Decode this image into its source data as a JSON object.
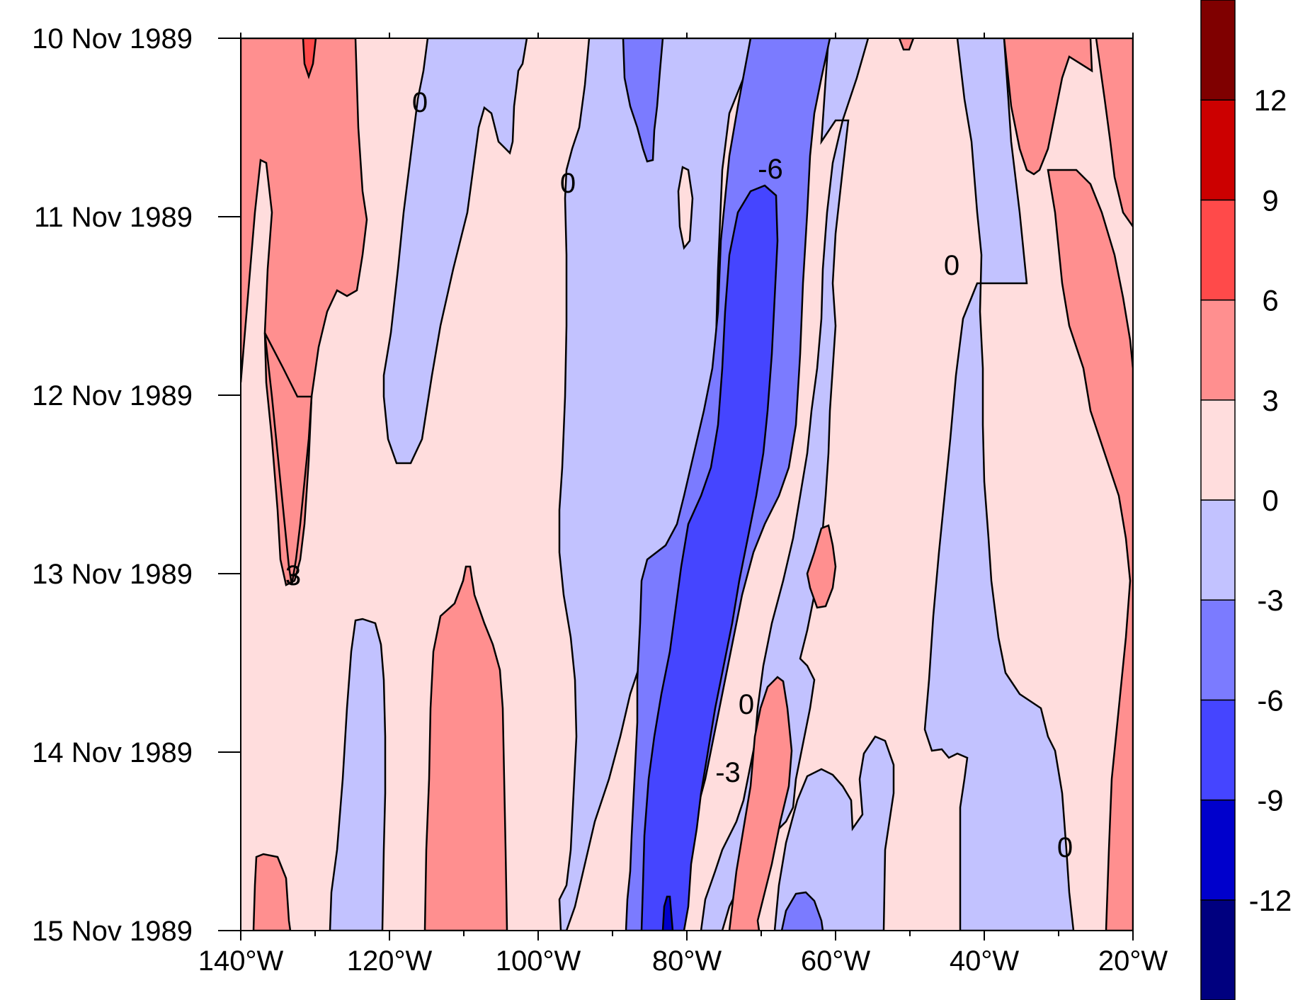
{
  "chart_data": {
    "type": "heatmap",
    "subtype": "hovmoller-contour",
    "title": "",
    "xlabel": "",
    "ylabel": "",
    "x_ticks": [
      "140°W",
      "120°W",
      "100°W",
      "80°W",
      "60°W",
      "40°W",
      "20°W"
    ],
    "x_tick_values": [
      -140,
      -120,
      -100,
      -80,
      -60,
      -40,
      -20
    ],
    "y_ticks": [
      "10 Nov 1989",
      "11 Nov 1989",
      "12 Nov 1989",
      "13 Nov 1989",
      "14 Nov 1989",
      "15 Nov 1989"
    ],
    "xlim": [
      -140,
      -20
    ],
    "ylim": [
      "10 Nov 1989",
      "15 Nov 1989"
    ],
    "colorbar": {
      "levels": [
        -12,
        -9,
        -6,
        -3,
        0,
        3,
        6,
        9,
        12
      ],
      "labels": [
        "-12",
        "-9",
        "-6",
        "-3",
        "0",
        "3",
        "6",
        "9",
        "12"
      ],
      "colors": [
        "#00007f",
        "#0000cc",
        "#4545ff",
        "#7b7bff",
        "#c2c2ff",
        "#ffdddd",
        "#ff8f8f",
        "#ff4a4a",
        "#cc0000",
        "#7f0000"
      ]
    },
    "contour_labels": [
      {
        "text": "0",
        "lon": -116,
        "date": "10 Nov 1989 08:00"
      },
      {
        "text": "0",
        "lon": -94,
        "date": "10 Nov 1989 19:00"
      },
      {
        "text": "-6",
        "lon": -68,
        "date": "10 Nov 1989 17:00"
      },
      {
        "text": "0",
        "lon": -44,
        "date": "11 Nov 1989 06:00"
      },
      {
        "text": "3",
        "lon": -133,
        "date": "13 Nov 1989 00:00"
      },
      {
        "text": "0",
        "lon": -72,
        "date": "13 Nov 1989 16:00"
      },
      {
        "text": "-3",
        "lon": -75,
        "date": "14 Nov 1989 02:00"
      },
      {
        "text": "0",
        "lon": -29,
        "date": "14 Nov 1989 13:00"
      }
    ]
  }
}
